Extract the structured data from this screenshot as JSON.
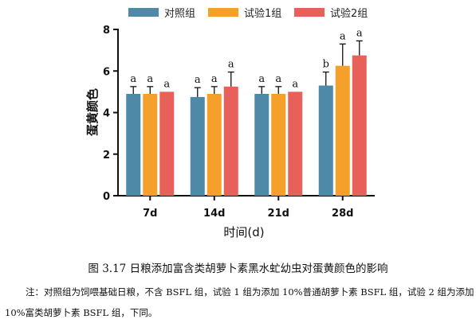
{
  "chart_data": {
    "type": "bar",
    "categories": [
      "7d",
      "14d",
      "21d",
      "28d"
    ],
    "series": [
      {
        "name": "对照组",
        "color": "#4e8aa8",
        "values": [
          4.9,
          4.75,
          4.9,
          5.3
        ],
        "errors": [
          0.35,
          0.45,
          0.35,
          0.65
        ],
        "labels": [
          "a",
          "a",
          "a",
          "b"
        ]
      },
      {
        "name": "试验1组",
        "color": "#f5a02a",
        "values": [
          4.9,
          4.9,
          4.9,
          6.25
        ],
        "errors": [
          0.35,
          0.35,
          0.35,
          1.05
        ],
        "labels": [
          "a",
          "a",
          "a",
          "a"
        ]
      },
      {
        "name": "试验2组",
        "color": "#e8605a",
        "values": [
          5.0,
          5.25,
          5.0,
          6.75
        ],
        "errors": [
          0.0,
          0.7,
          0.0,
          0.7
        ],
        "labels": [
          "a",
          "a",
          "a",
          "a"
        ]
      }
    ],
    "xlabel": "时间(d)",
    "ylabel": "蛋黄颜色",
    "ylim": [
      0,
      8
    ],
    "yticks": [
      0,
      2,
      4,
      6,
      8
    ],
    "legend": "top"
  },
  "caption": "图 3.17  日粮添加富含类胡萝卜素黑水虻幼虫对蛋黄颜色的影响",
  "note": "注：对照组为饲喂基础日粮，不含 BSFL 组，试验 1 组为添加 10%普通胡萝卜素 BSFL 组，试验 2 组为添加 10%富类胡萝卜素 BSFL 组，下同。"
}
